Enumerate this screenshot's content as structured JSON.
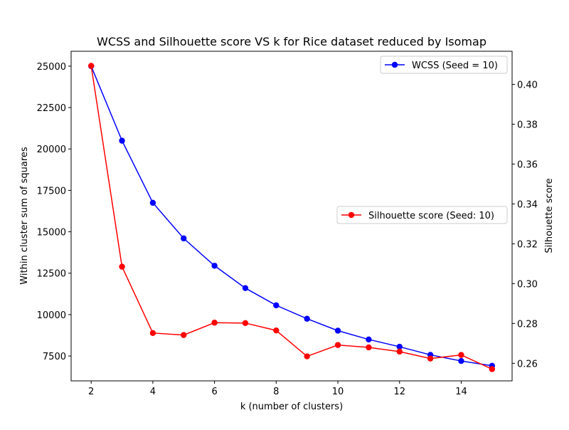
{
  "chart_data": {
    "type": "line",
    "title": "WCSS and Silhouette score VS k for Rice dataset reduced by Isomap",
    "xlabel": "k (number of clusters)",
    "ylabel_left": "Within cluster sum of squares",
    "ylabel_right": "Silhouette score",
    "x": [
      2,
      3,
      4,
      5,
      6,
      7,
      8,
      9,
      10,
      11,
      12,
      13,
      14,
      15
    ],
    "xlim": [
      1.35,
      15.65
    ],
    "xticks": [
      2,
      4,
      6,
      8,
      10,
      12,
      14
    ],
    "ylim_left": [
      5999,
      25899
    ],
    "yticks_left": [
      7500,
      10000,
      12500,
      15000,
      17500,
      20000,
      22500,
      25000
    ],
    "ylim_right": [
      0.2512,
      0.4166
    ],
    "yticks_right": [
      0.26,
      0.28,
      0.3,
      0.32,
      0.34,
      0.36,
      0.38,
      0.4
    ],
    "grid": false,
    "series": [
      {
        "name": "WCSS (Seed = 10)",
        "axis": "left",
        "color": "#0000ff",
        "legend_position": "upper right",
        "values": [
          25000,
          20500,
          16750,
          14600,
          12950,
          11600,
          10560,
          9750,
          9030,
          8500,
          8060,
          7570,
          7200,
          6910
        ]
      },
      {
        "name": "Silhouette score (Seed: 10)",
        "axis": "right",
        "color": "#ff0000",
        "legend_position": "center right",
        "values": [
          0.4093,
          0.3085,
          0.2752,
          0.2742,
          0.2804,
          0.2802,
          0.2765,
          0.2635,
          0.2692,
          0.268,
          0.2659,
          0.2624,
          0.2642,
          0.2571
        ]
      }
    ]
  }
}
